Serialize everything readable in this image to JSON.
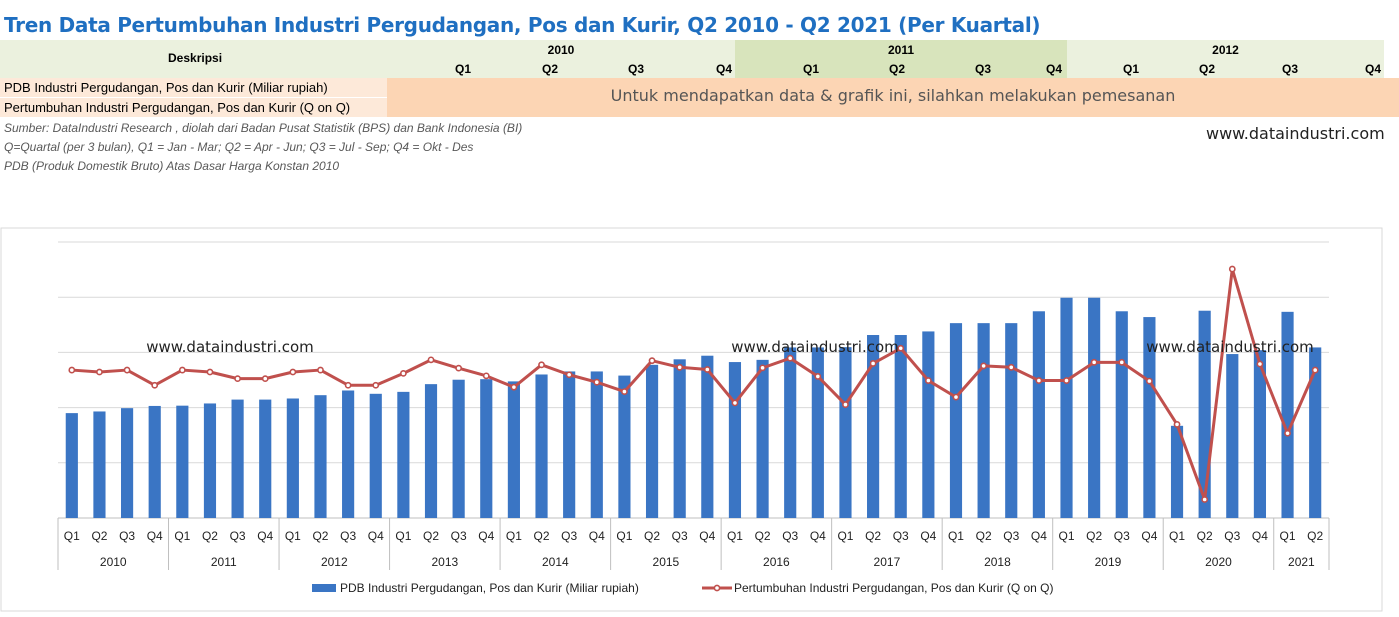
{
  "title": "Tren Data Pertumbuhan Industri Pergudangan, Pos dan Kurir, Q2 2010 - Q2 2021 (Per Kuartal)",
  "table": {
    "desc_header": "Deskripsi",
    "years": [
      {
        "label": "2010",
        "quarters": [
          "Q1",
          "Q2",
          "Q3",
          "Q4"
        ]
      },
      {
        "label": "2011",
        "quarters": [
          "Q1",
          "Q2",
          "Q3",
          "Q4"
        ]
      },
      {
        "label": "2012",
        "quarters": [
          "Q1",
          "Q2",
          "Q3",
          "Q4"
        ]
      }
    ],
    "rows": [
      "PDB Industri Pergudangan, Pos dan Kurir (Miliar rupiah)",
      "Pertumbuhan Industri Pergudangan, Pos dan Kurir (Q on Q)"
    ],
    "order_message": "Untuk mendapatkan data & grafik ini, silahkan melakukan pemesanan"
  },
  "notes": [
    "Sumber: DataIndustri Research , diolah dari Badan Pusat Statistik (BPS) dan Bank Indonesia (BI)",
    "Q=Quartal (per 3 bulan), Q1 = Jan - Mar; Q2 = Apr - Jun; Q3 = Jul - Sep; Q4 = Okt - Des",
    "PDB (Produk Domestik Bruto) Atas Dasar Harga Konstan 2010"
  ],
  "website": "www.dataindustri.com",
  "colors": {
    "title": "#1f6fc1",
    "bar": "#3a75c4",
    "line": "#c0504d",
    "grid": "#d9d9d9"
  },
  "chart_data": {
    "type": "bar",
    "title": "",
    "watermark": "www.dataindustri.com",
    "ylim": [
      0,
      100
    ],
    "quarters": [
      "Q1",
      "Q2",
      "Q3",
      "Q4",
      "Q1",
      "Q2",
      "Q3",
      "Q4",
      "Q1",
      "Q2",
      "Q3",
      "Q4",
      "Q1",
      "Q2",
      "Q3",
      "Q4",
      "Q1",
      "Q2",
      "Q3",
      "Q4",
      "Q1",
      "Q2",
      "Q3",
      "Q4",
      "Q1",
      "Q2",
      "Q3",
      "Q4",
      "Q1",
      "Q2",
      "Q3",
      "Q4",
      "Q1",
      "Q2",
      "Q3",
      "Q4",
      "Q1",
      "Q2",
      "Q3",
      "Q4",
      "Q1",
      "Q2",
      "Q3",
      "Q4",
      "Q1",
      "Q2"
    ],
    "years": [
      {
        "label": "2010",
        "count": 4
      },
      {
        "label": "2011",
        "count": 4
      },
      {
        "label": "2012",
        "count": 4
      },
      {
        "label": "2013",
        "count": 4
      },
      {
        "label": "2014",
        "count": 4
      },
      {
        "label": "2015",
        "count": 4
      },
      {
        "label": "2016",
        "count": 4
      },
      {
        "label": "2017",
        "count": 4
      },
      {
        "label": "2018",
        "count": 4
      },
      {
        "label": "2019",
        "count": 4
      },
      {
        "label": "2020",
        "count": 4
      },
      {
        "label": "2021",
        "count": 2
      }
    ],
    "series": [
      {
        "name": "PDB Industri Pergudangan, Pos dan Kurir (Miliar rupiah)",
        "kind": "bar",
        "values": [
          38.0,
          38.6,
          39.8,
          40.6,
          40.7,
          41.5,
          42.9,
          42.9,
          43.3,
          44.5,
          46.2,
          45.0,
          45.7,
          48.5,
          50.1,
          50.3,
          49.5,
          52.0,
          53.1,
          53.1,
          51.6,
          55.5,
          57.5,
          58.8,
          56.5,
          57.3,
          61.8,
          61.8,
          61.9,
          66.3,
          66.3,
          67.6,
          70.6,
          70.6,
          70.6,
          74.9,
          79.8,
          79.8,
          74.9,
          72.8,
          33.4,
          75.1,
          59.4,
          60.8,
          74.7,
          61.8
        ]
      },
      {
        "name": "Pertumbuhan Industri Pergudangan, Pos dan Kurir (Q on Q)",
        "kind": "line",
        "values": [
          53.6,
          52.9,
          53.6,
          48.1,
          53.6,
          52.9,
          50.5,
          50.5,
          52.9,
          53.6,
          48.1,
          48.1,
          52.4,
          57.3,
          54.3,
          51.5,
          47.4,
          55.5,
          51.9,
          49.2,
          45.8,
          57.0,
          54.6,
          53.8,
          41.7,
          54.4,
          57.9,
          51.3,
          41.1,
          56.0,
          61.5,
          49.8,
          43.8,
          55.1,
          54.6,
          49.8,
          49.8,
          56.4,
          56.4,
          49.6,
          33.9,
          6.7,
          90.2,
          55.8,
          30.7,
          53.6
        ]
      }
    ]
  }
}
